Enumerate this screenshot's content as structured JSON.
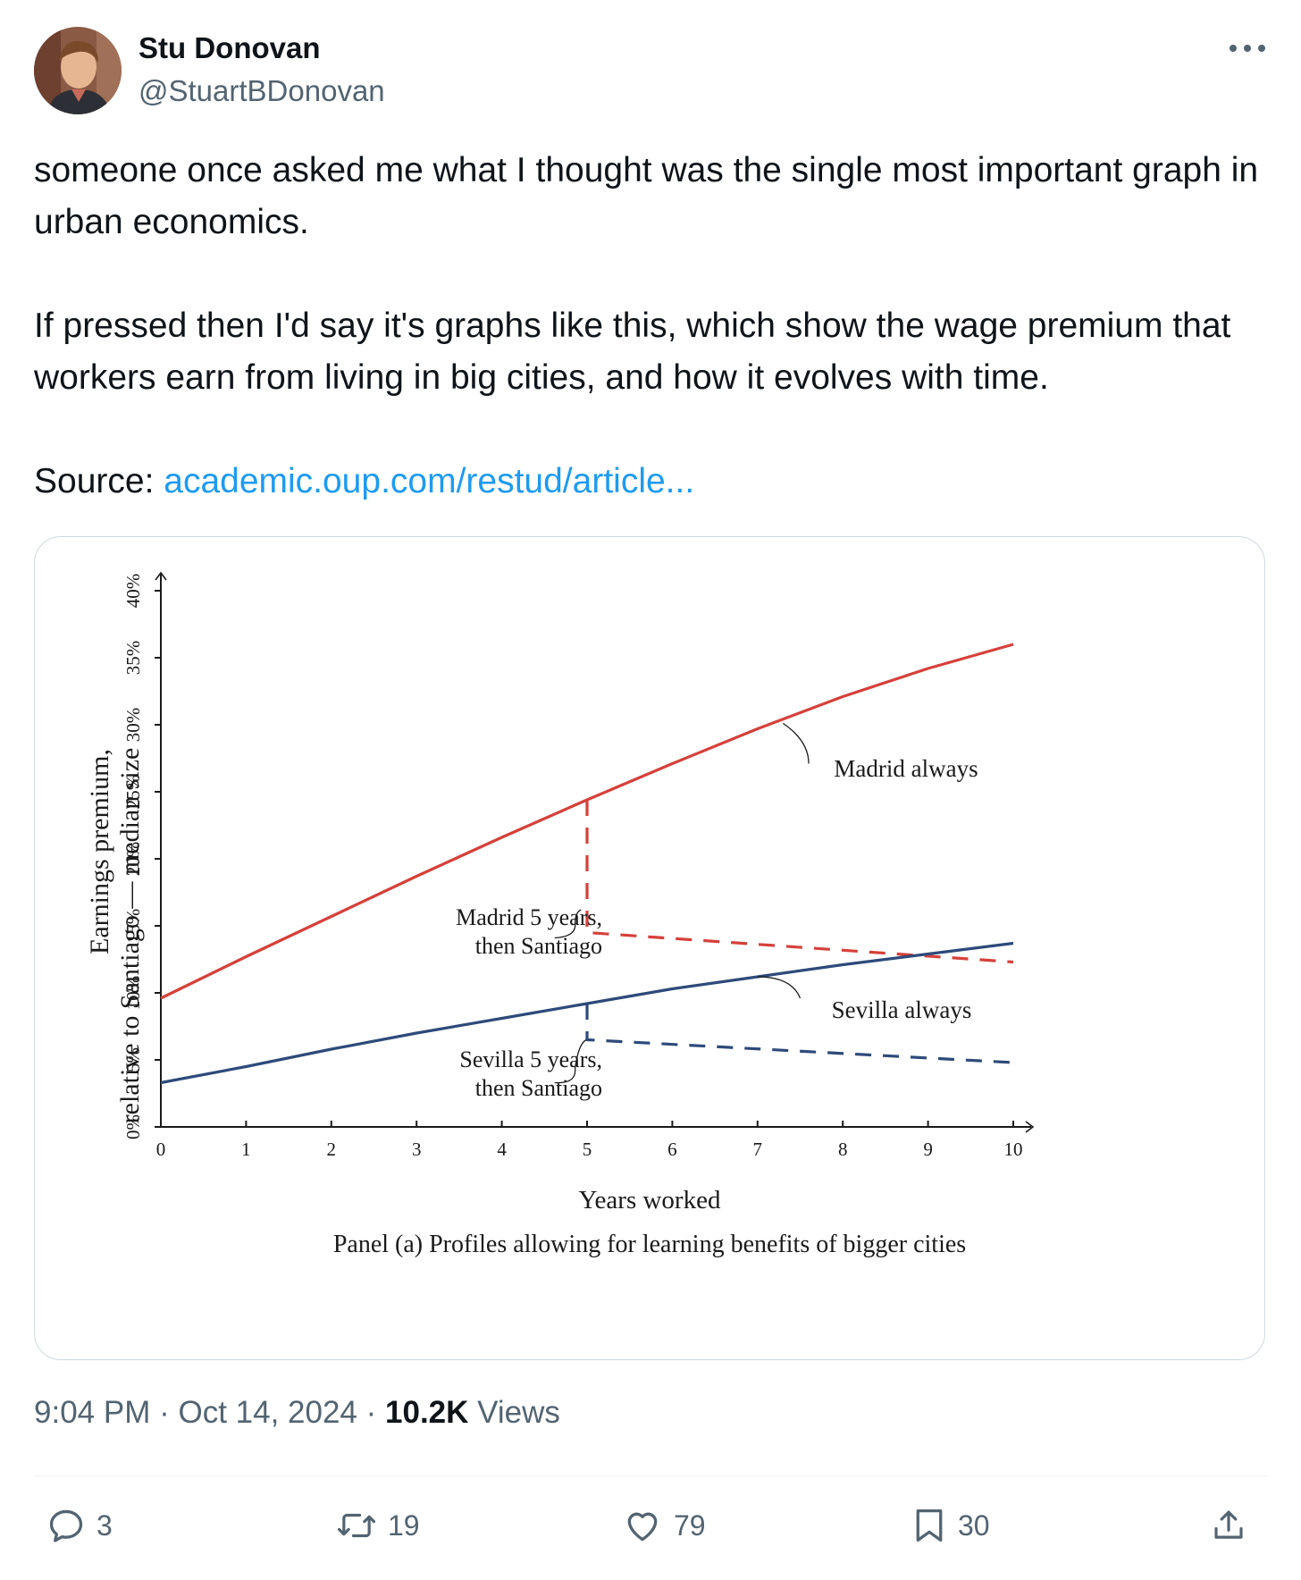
{
  "author": {
    "name": "Stu Donovan",
    "handle": "@StuartBDonovan",
    "avatar_icon": "profile-photo-avatar"
  },
  "tweet": {
    "line1": "someone once asked me what I thought was the single most important graph in urban economics.",
    "line2": "If pressed then I'd say it's graphs like this, which show the wage premium that workers earn from living in big cities, and how it evolves with time.",
    "source_label": "Source:",
    "source_link": "academic.oup.com/restud/article..."
  },
  "chart_data": {
    "type": "line",
    "ylabel_line1": "Earnings premium,",
    "ylabel_line2": "relative to Santiago — median size",
    "xlabel": "Years worked",
    "caption": "Panel (a) Profiles allowing for learning benefits of bigger cities",
    "xlim": [
      0,
      10
    ],
    "ylim": [
      0,
      40
    ],
    "x_ticks": [
      "0",
      "1",
      "2",
      "3",
      "4",
      "5",
      "6",
      "7",
      "8",
      "9",
      "10"
    ],
    "y_ticks": [
      "0%",
      "5%",
      "10%",
      "15%",
      "20%",
      "25%",
      "30%",
      "35%",
      "40%"
    ],
    "series": [
      {
        "name": "Madrid always",
        "style": "solid",
        "color": "#d6403a",
        "x": [
          0,
          1,
          2,
          3,
          4,
          5,
          6,
          7,
          8,
          9,
          10
        ],
        "y": [
          9.6,
          12.7,
          15.7,
          18.7,
          21.6,
          24.4,
          27.1,
          29.7,
          32.1,
          34.2,
          36.0
        ]
      },
      {
        "name": "Madrid 5 years, then Santiago",
        "style": "dashed",
        "color": "#d6403a",
        "x": [
          5,
          5,
          10
        ],
        "y": [
          24.4,
          14.5,
          12.3
        ]
      },
      {
        "name": "Sevilla always",
        "style": "solid",
        "color": "#2d4a7a",
        "x": [
          0,
          1,
          2,
          3,
          4,
          5,
          6,
          7,
          8,
          9,
          10
        ],
        "y": [
          3.3,
          4.5,
          5.8,
          7.0,
          8.1,
          9.2,
          10.3,
          11.2,
          12.1,
          12.9,
          13.7
        ]
      },
      {
        "name": "Sevilla 5 years, then Santiago",
        "style": "dashed",
        "color": "#2d4a7a",
        "x": [
          5,
          5,
          10
        ],
        "y": [
          9.2,
          6.5,
          4.8
        ]
      }
    ],
    "annotations": [
      {
        "text": "Madrid always"
      },
      {
        "lines": [
          "Madrid 5 years,",
          "then Santiago"
        ]
      },
      {
        "text": "Sevilla always"
      },
      {
        "lines": [
          "Sevilla 5 years,",
          "then Santiago"
        ]
      }
    ]
  },
  "meta": {
    "time": "9:04 PM",
    "separator": "·",
    "date": "Oct 14, 2024",
    "views_count": "10.2K",
    "views_label": "Views"
  },
  "actions": {
    "replies": "3",
    "retweets": "19",
    "likes": "79",
    "bookmarks": "30"
  }
}
